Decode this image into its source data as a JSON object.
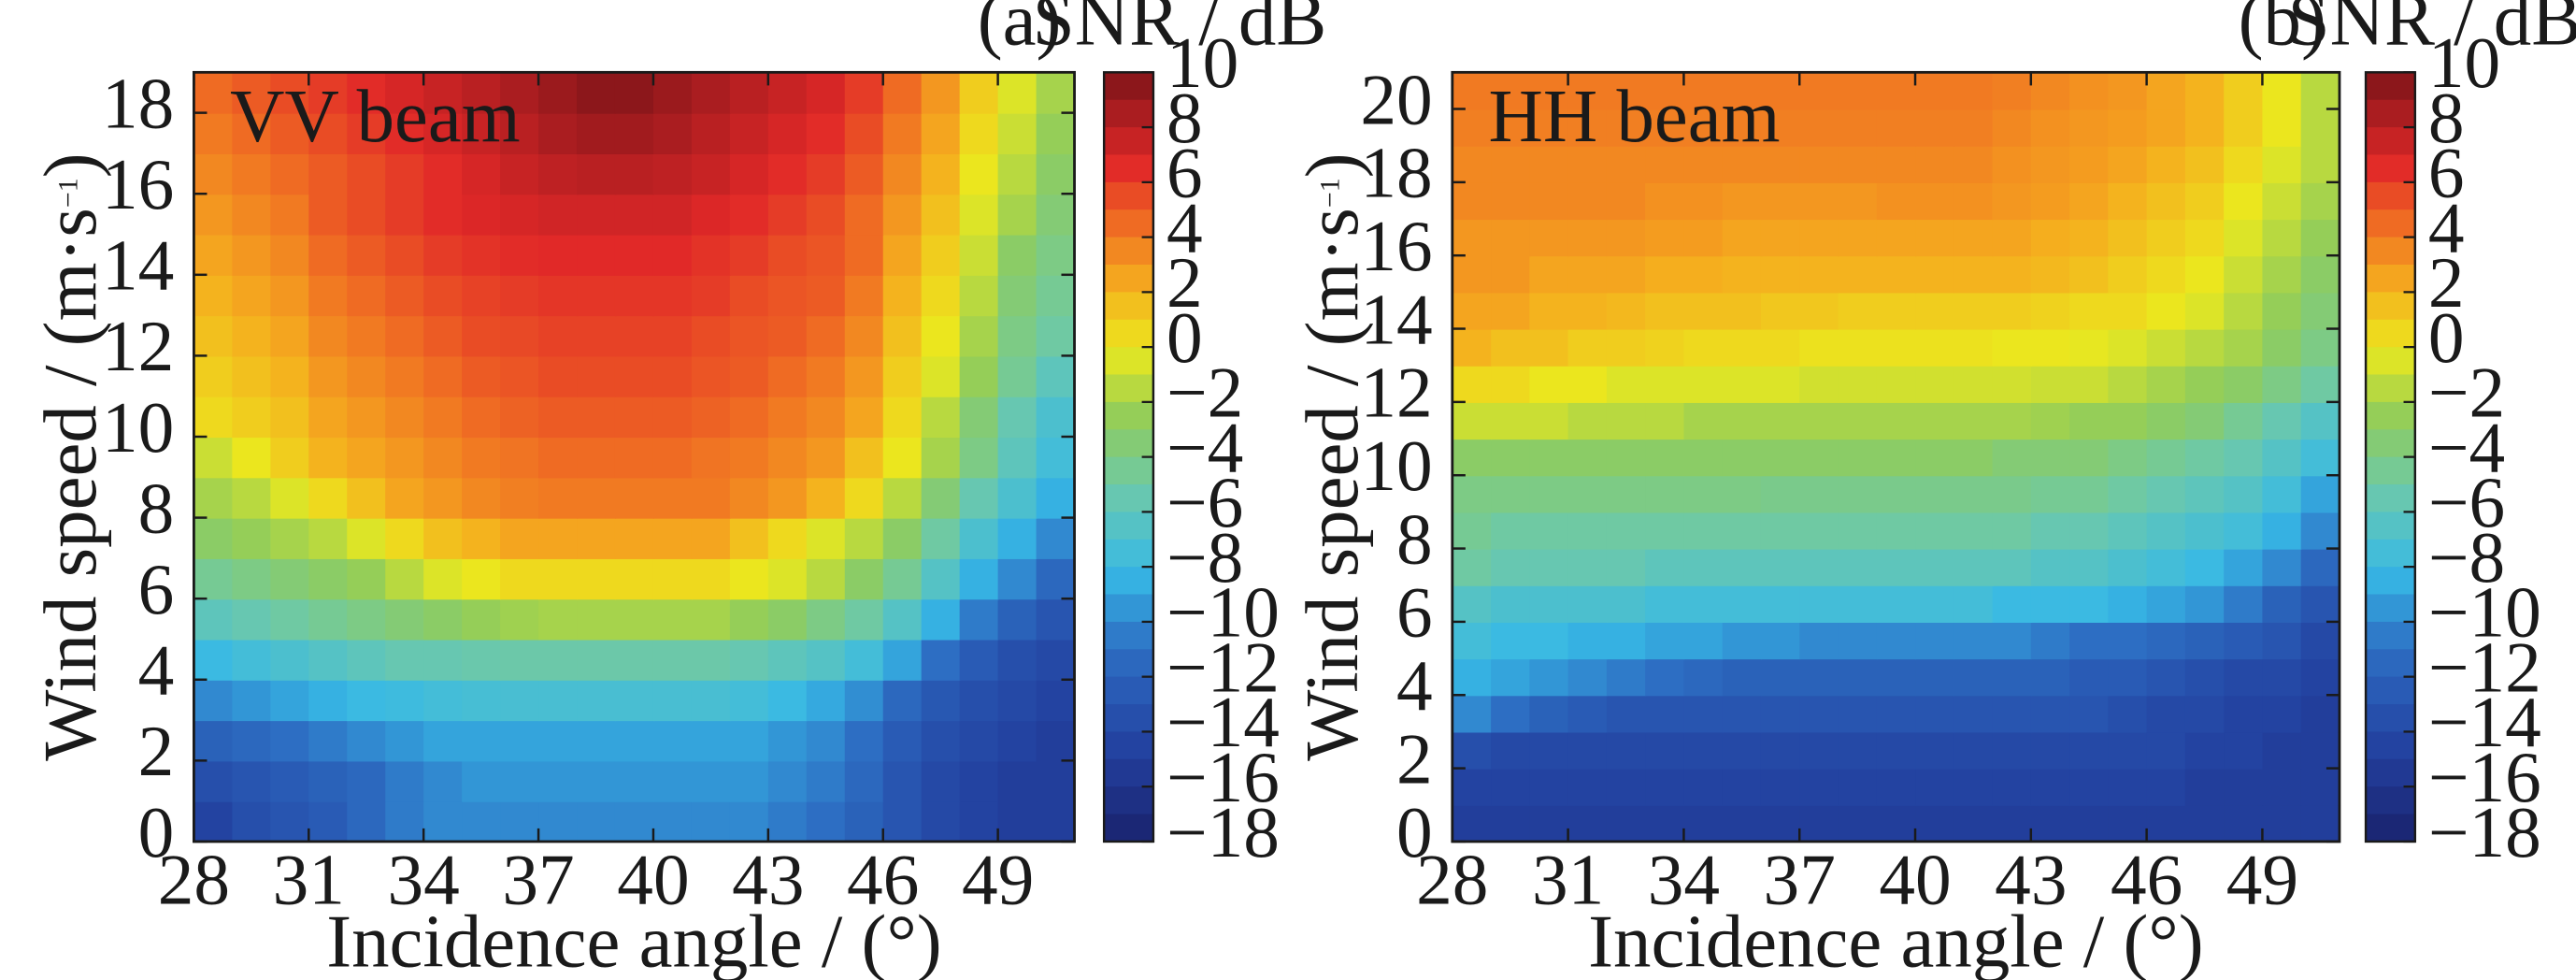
{
  "chart_data": [
    {
      "type": "heatmap",
      "panel_label": "(a)",
      "annotation": "VV beam",
      "colorbar_title": "SNR / dB",
      "xlabel": "Incidence angle / (°)",
      "ylabel_main": "Wind speed / (m·s",
      "ylabel_sup": "−1",
      "ylabel_end": ")",
      "x_ticks": [
        "28",
        "31",
        "34",
        "37",
        "40",
        "43",
        "46",
        "49"
      ],
      "y_ticks": [
        "0",
        "2",
        "4",
        "6",
        "8",
        "10",
        "12",
        "14",
        "16",
        "18"
      ],
      "colorbar_ticks": [
        "10",
        "8",
        "6",
        "4",
        "2",
        "0",
        "−2",
        "−4",
        "−6",
        "−8",
        "−10",
        "−12",
        "−14",
        "−16",
        "−18"
      ],
      "xlim": [
        28,
        51
      ],
      "ylim": [
        0,
        19
      ],
      "clim": [
        -18,
        10
      ],
      "x": [
        28.5,
        29.5,
        30.5,
        31.5,
        32.5,
        33.5,
        34.5,
        35.5,
        36.5,
        37.5,
        38.5,
        39.5,
        40.5,
        41.5,
        42.5,
        43.5,
        44.5,
        45.5,
        46.5,
        47.5,
        48.5,
        49.5,
        50.5
      ],
      "y": [
        0.5,
        1.5,
        2.5,
        3.5,
        4.5,
        5.5,
        6.5,
        7.5,
        8.5,
        9.5,
        10.5,
        11.5,
        12.5,
        13.5,
        14.5,
        15.5,
        16.5,
        17.5,
        18.5
      ],
      "z": [
        [
          -14.5,
          -13.5,
          -13,
          -12.5,
          -11.5,
          -10.5,
          -10,
          -10,
          -10,
          -10,
          -10,
          -10,
          -10,
          -10,
          -10,
          -10.5,
          -11,
          -12,
          -13,
          -14,
          -14.5,
          -15,
          -15
        ],
        [
          -13.5,
          -13,
          -12.5,
          -12,
          -11.5,
          -10.5,
          -10,
          -9.5,
          -9.5,
          -9.5,
          -9.5,
          -9.5,
          -9.5,
          -9.5,
          -9.5,
          -10,
          -10.5,
          -11.5,
          -13,
          -14,
          -14.5,
          -15,
          -15
        ],
        [
          -12,
          -11.5,
          -11,
          -10.5,
          -10,
          -9.5,
          -9,
          -9,
          -9,
          -9,
          -9,
          -9,
          -9,
          -9,
          -9,
          -9.5,
          -10,
          -11,
          -12.5,
          -13.5,
          -14,
          -14.5,
          -15
        ],
        [
          -10,
          -9.5,
          -9,
          -8.5,
          -8,
          -7.8,
          -7.5,
          -7.3,
          -7.2,
          -7.2,
          -7.2,
          -7.2,
          -7.2,
          -7.2,
          -7.5,
          -8,
          -8.8,
          -9.8,
          -11.5,
          -12.8,
          -13.5,
          -14,
          -14.5
        ],
        [
          -8,
          -7.5,
          -7,
          -6.5,
          -6,
          -5.5,
          -5.5,
          -5.3,
          -5.2,
          -5.2,
          -5.2,
          -5.2,
          -5.2,
          -5.2,
          -5.5,
          -6,
          -6.5,
          -7.5,
          -9,
          -11,
          -12.5,
          -13.5,
          -14
        ],
        [
          -6,
          -5.5,
          -5,
          -4.5,
          -4,
          -3.5,
          -3,
          -2.5,
          -2.2,
          -2,
          -2,
          -2,
          -2,
          -2,
          -2.5,
          -3,
          -4,
          -5,
          -6.5,
          -8.5,
          -10.5,
          -12,
          -13
        ],
        [
          -4.5,
          -4,
          -3.5,
          -3,
          -2.5,
          -1.5,
          -0.5,
          0,
          0.5,
          0.5,
          0.5,
          0.5,
          0.5,
          0.5,
          0,
          -0.5,
          -1.5,
          -3,
          -4.5,
          -6.5,
          -8.5,
          -10,
          -11.5
        ],
        [
          -3,
          -2.5,
          -2,
          -1.5,
          -0.5,
          0.5,
          1.5,
          2,
          2.5,
          2.5,
          2.5,
          2.5,
          2.5,
          2.5,
          1.5,
          0.5,
          -0.5,
          -1.5,
          -3,
          -5,
          -7,
          -8.5,
          -10
        ],
        [
          -2,
          -1.5,
          -0.5,
          0.5,
          1.5,
          2.5,
          3,
          3.5,
          3.8,
          4,
          4,
          4,
          4,
          4,
          3.5,
          3,
          2,
          0.5,
          -1.5,
          -3.5,
          -5.5,
          -7,
          -8.5
        ],
        [
          -1,
          0,
          1,
          2,
          2.5,
          3,
          3.5,
          4,
          4.2,
          4.5,
          4.5,
          4.5,
          4.5,
          4.2,
          4,
          3.5,
          3,
          1.5,
          0,
          -2,
          -4,
          -6,
          -7.5
        ],
        [
          0.5,
          1,
          1.5,
          2.5,
          3,
          3.5,
          4,
          4.5,
          4.8,
          5,
          5,
          5,
          5,
          4.8,
          4.5,
          4,
          3.5,
          2.5,
          0.5,
          -1.5,
          -3.5,
          -5.5,
          -7
        ],
        [
          1,
          1.5,
          2,
          3,
          3.5,
          4,
          4.5,
          5,
          5.2,
          5.5,
          5.5,
          5.5,
          5.5,
          5.2,
          5,
          4.5,
          4,
          3,
          1,
          -0.5,
          -2.5,
          -4.5,
          -6
        ],
        [
          1.5,
          2,
          2.5,
          3.5,
          4,
          4.5,
          5,
          5.5,
          5.6,
          5.8,
          5.8,
          5.8,
          5.8,
          5.5,
          5.2,
          5,
          4.5,
          3.5,
          1.5,
          0,
          -2,
          -4,
          -5
        ],
        [
          2,
          2.5,
          3,
          4,
          4.5,
          5,
          5.5,
          5.8,
          6,
          6.2,
          6.2,
          6.2,
          6.2,
          6,
          5.5,
          5.2,
          5,
          4,
          2,
          0.5,
          -1.5,
          -3.5,
          -4.5
        ],
        [
          2.5,
          3,
          3.5,
          4.5,
          5,
          5.5,
          6,
          6.3,
          6.5,
          6.6,
          6.6,
          6.6,
          6.6,
          6.3,
          6,
          5.5,
          5.2,
          4.5,
          2.5,
          1,
          -1,
          -3,
          -4
        ],
        [
          3,
          3.5,
          4,
          5,
          5.5,
          6,
          6.5,
          6.8,
          7,
          7.2,
          7.2,
          7.2,
          7.2,
          6.8,
          6.5,
          6,
          5.5,
          4.5,
          3,
          1.5,
          -0.5,
          -2,
          -3.5
        ],
        [
          3.5,
          4,
          4.5,
          5,
          5.5,
          6,
          6.5,
          7,
          7.5,
          7.8,
          8,
          8,
          7.8,
          7.5,
          7,
          6.5,
          6,
          5,
          3.5,
          2,
          0,
          -1.5,
          -3
        ],
        [
          4,
          4.5,
          5,
          5.5,
          6,
          6.5,
          7,
          7.5,
          8,
          8.5,
          8.8,
          8.8,
          8.5,
          8,
          7.5,
          7,
          6.5,
          5.5,
          4,
          2.5,
          0.5,
          -1,
          -2.5
        ],
        [
          4.5,
          5,
          5.5,
          6,
          6.5,
          7,
          7.5,
          8,
          8.5,
          9,
          9.5,
          9.5,
          9,
          8.5,
          8,
          7.5,
          7,
          6,
          4.5,
          3,
          1,
          -0.5,
          -2
        ]
      ]
    },
    {
      "type": "heatmap",
      "panel_label": "(b)",
      "annotation": "HH beam",
      "colorbar_title": "SNR / dB",
      "xlabel": "Incidence angle / (°)",
      "ylabel_main": "Wind speed / (m·s",
      "ylabel_sup": "−1",
      "ylabel_end": ")",
      "x_ticks": [
        "28",
        "31",
        "34",
        "37",
        "40",
        "43",
        "46",
        "49"
      ],
      "y_ticks": [
        "0",
        "2",
        "4",
        "6",
        "8",
        "10",
        "12",
        "14",
        "16",
        "18",
        "20"
      ],
      "colorbar_ticks": [
        "10",
        "8",
        "6",
        "4",
        "2",
        "0",
        "−2",
        "−4",
        "−6",
        "−8",
        "−10",
        "−12",
        "−14",
        "−16",
        "−18"
      ],
      "xlim": [
        28,
        51
      ],
      "ylim": [
        0,
        21
      ],
      "clim": [
        -18,
        10
      ],
      "x": [
        28.5,
        29.5,
        30.5,
        31.5,
        32.5,
        33.5,
        34.5,
        35.5,
        36.5,
        37.5,
        38.5,
        39.5,
        40.5,
        41.5,
        42.5,
        43.5,
        44.5,
        45.5,
        46.5,
        47.5,
        48.5,
        49.5,
        50.5
      ],
      "y": [
        0.5,
        1.5,
        2.5,
        3.5,
        4.5,
        5.5,
        6.5,
        7.5,
        8.5,
        9.5,
        10.5,
        11.5,
        12.5,
        13.5,
        14.5,
        15.5,
        16.5,
        17.5,
        18.5,
        19.5,
        20.5
      ],
      "z": [
        [
          -15,
          -15,
          -15,
          -15,
          -15,
          -15,
          -15,
          -15,
          -15,
          -15,
          -15,
          -15,
          -15,
          -15,
          -15,
          -15,
          -15,
          -15,
          -15,
          -15,
          -15,
          -15,
          -15
        ],
        [
          -14.5,
          -14.5,
          -14.5,
          -14.5,
          -14.5,
          -14.5,
          -14.5,
          -14.5,
          -14.5,
          -14.5,
          -14.5,
          -14.5,
          -14.5,
          -14.5,
          -14.5,
          -14.5,
          -14.5,
          -14.5,
          -14.5,
          -15,
          -15,
          -15,
          -15
        ],
        [
          -13.5,
          -14,
          -14,
          -14,
          -14,
          -14,
          -14,
          -14,
          -14,
          -14,
          -14,
          -14,
          -14,
          -14,
          -14,
          -14,
          -14,
          -14,
          -14,
          -14.5,
          -14.5,
          -15,
          -15
        ],
        [
          -10,
          -11,
          -12,
          -12.5,
          -13,
          -13,
          -13,
          -13,
          -13,
          -13,
          -13,
          -13,
          -13,
          -13,
          -13,
          -13,
          -13,
          -13.5,
          -14,
          -14,
          -14.5,
          -14.5,
          -15
        ],
        [
          -8.5,
          -9,
          -9.5,
          -10,
          -10.5,
          -11,
          -11.5,
          -12,
          -12,
          -12,
          -12,
          -12,
          -12,
          -12,
          -12,
          -12,
          -12.5,
          -12.5,
          -13,
          -13.5,
          -14,
          -14,
          -14.5
        ],
        [
          -7.5,
          -8,
          -8,
          -8.5,
          -8.5,
          -9,
          -9,
          -9.5,
          -9.5,
          -10,
          -10,
          -10,
          -10,
          -10,
          -10,
          -10.5,
          -11,
          -11,
          -11.5,
          -12,
          -12.5,
          -13,
          -14
        ],
        [
          -6.5,
          -7,
          -7,
          -7,
          -7,
          -7.5,
          -7.5,
          -7.5,
          -7.5,
          -7.5,
          -7.5,
          -7.5,
          -7.5,
          -7.5,
          -8,
          -8,
          -8,
          -8.5,
          -9,
          -9.5,
          -10.5,
          -12,
          -13
        ],
        [
          -5,
          -5.5,
          -5.5,
          -5.5,
          -5.5,
          -6,
          -6,
          -6,
          -6,
          -6,
          -6,
          -6,
          -6,
          -6,
          -6,
          -6.5,
          -6.5,
          -7,
          -7.5,
          -8,
          -9,
          -10,
          -11.5
        ],
        [
          -4.5,
          -5,
          -5,
          -5,
          -5,
          -5,
          -5,
          -5,
          -5,
          -5,
          -5,
          -5,
          -5,
          -5,
          -5,
          -5.5,
          -5.5,
          -6,
          -6.5,
          -7,
          -7.5,
          -8.5,
          -10
        ],
        [
          -4,
          -4,
          -4,
          -4,
          -4,
          -4,
          -4,
          -4,
          -4.2,
          -4.2,
          -4.2,
          -4.2,
          -4.2,
          -4.2,
          -4.2,
          -4.5,
          -4.5,
          -5,
          -5.5,
          -6,
          -6.5,
          -7.5,
          -9
        ],
        [
          -3,
          -3,
          -3,
          -3,
          -3,
          -3,
          -3,
          -3,
          -3,
          -3,
          -3,
          -3,
          -3,
          -3,
          -3.5,
          -3.5,
          -3.5,
          -4,
          -4.5,
          -5,
          -5.5,
          -6.5,
          -7.5
        ],
        [
          -1,
          -1,
          -1,
          -1.5,
          -1.5,
          -1.5,
          -2,
          -2,
          -2,
          -2,
          -2,
          -2,
          -2,
          -2,
          -2,
          -2.2,
          -2.5,
          -2.5,
          -3,
          -3.5,
          -4.5,
          -5.5,
          -6.5
        ],
        [
          0.5,
          0.5,
          0,
          0,
          -0.5,
          -0.5,
          -0.5,
          -0.5,
          -0.5,
          -0.8,
          -0.8,
          -0.8,
          -0.8,
          -0.8,
          -0.8,
          -1,
          -1,
          -1.5,
          -2,
          -2.5,
          -3,
          -4,
          -5
        ],
        [
          2,
          1.5,
          1.5,
          1,
          1,
          0.8,
          0.5,
          0.5,
          0.5,
          0.2,
          0.2,
          0.2,
          0.2,
          0.2,
          0,
          0,
          -0.2,
          -0.5,
          -1,
          -1.5,
          -2,
          -3,
          -4
        ],
        [
          2.5,
          2.5,
          2,
          2,
          1.8,
          1.5,
          1.5,
          1.5,
          1.2,
          1.2,
          1,
          1,
          1,
          1,
          1,
          0.8,
          0.5,
          0.5,
          0,
          -0.5,
          -1.5,
          -2.5,
          -3.5
        ],
        [
          3,
          3,
          2.5,
          2.5,
          2.5,
          2.2,
          2.2,
          2,
          2,
          2,
          2,
          2,
          2,
          2,
          2,
          1.8,
          1.5,
          1,
          0.5,
          0,
          -1,
          -2,
          -3
        ],
        [
          3,
          3,
          3,
          3,
          3,
          2.8,
          2.8,
          2.5,
          2.5,
          2.5,
          2.5,
          2.5,
          2.5,
          2.5,
          2.5,
          2.2,
          2,
          1.5,
          1,
          0.5,
          -0.5,
          -1.5,
          -2.5
        ],
        [
          3.5,
          3.5,
          3.5,
          3.5,
          3.5,
          3.2,
          3.2,
          3,
          3,
          3,
          3,
          3.2,
          3.2,
          3.2,
          3,
          2.8,
          2.5,
          2,
          1.5,
          1,
          0,
          -1,
          -2
        ],
        [
          3.5,
          3.5,
          3.5,
          3.5,
          3.5,
          3.5,
          3.5,
          3.5,
          3.5,
          3.5,
          3.5,
          3.5,
          3.5,
          3.5,
          3.2,
          3,
          2.8,
          2.5,
          2,
          1.5,
          0.5,
          -0.5,
          -1.5
        ],
        [
          3.8,
          3.8,
          3.8,
          3.8,
          3.8,
          3.8,
          3.8,
          3.8,
          3.8,
          3.8,
          3.8,
          3.8,
          3.8,
          3.8,
          3.5,
          3.2,
          3,
          2.8,
          2.5,
          2,
          1,
          0,
          -1.5
        ],
        [
          4,
          4,
          4,
          4,
          4,
          4,
          4,
          4,
          4,
          4,
          4,
          4,
          4,
          4,
          3.8,
          3.5,
          3.2,
          3,
          2.5,
          2,
          1,
          0,
          -1.5
        ]
      ]
    }
  ]
}
